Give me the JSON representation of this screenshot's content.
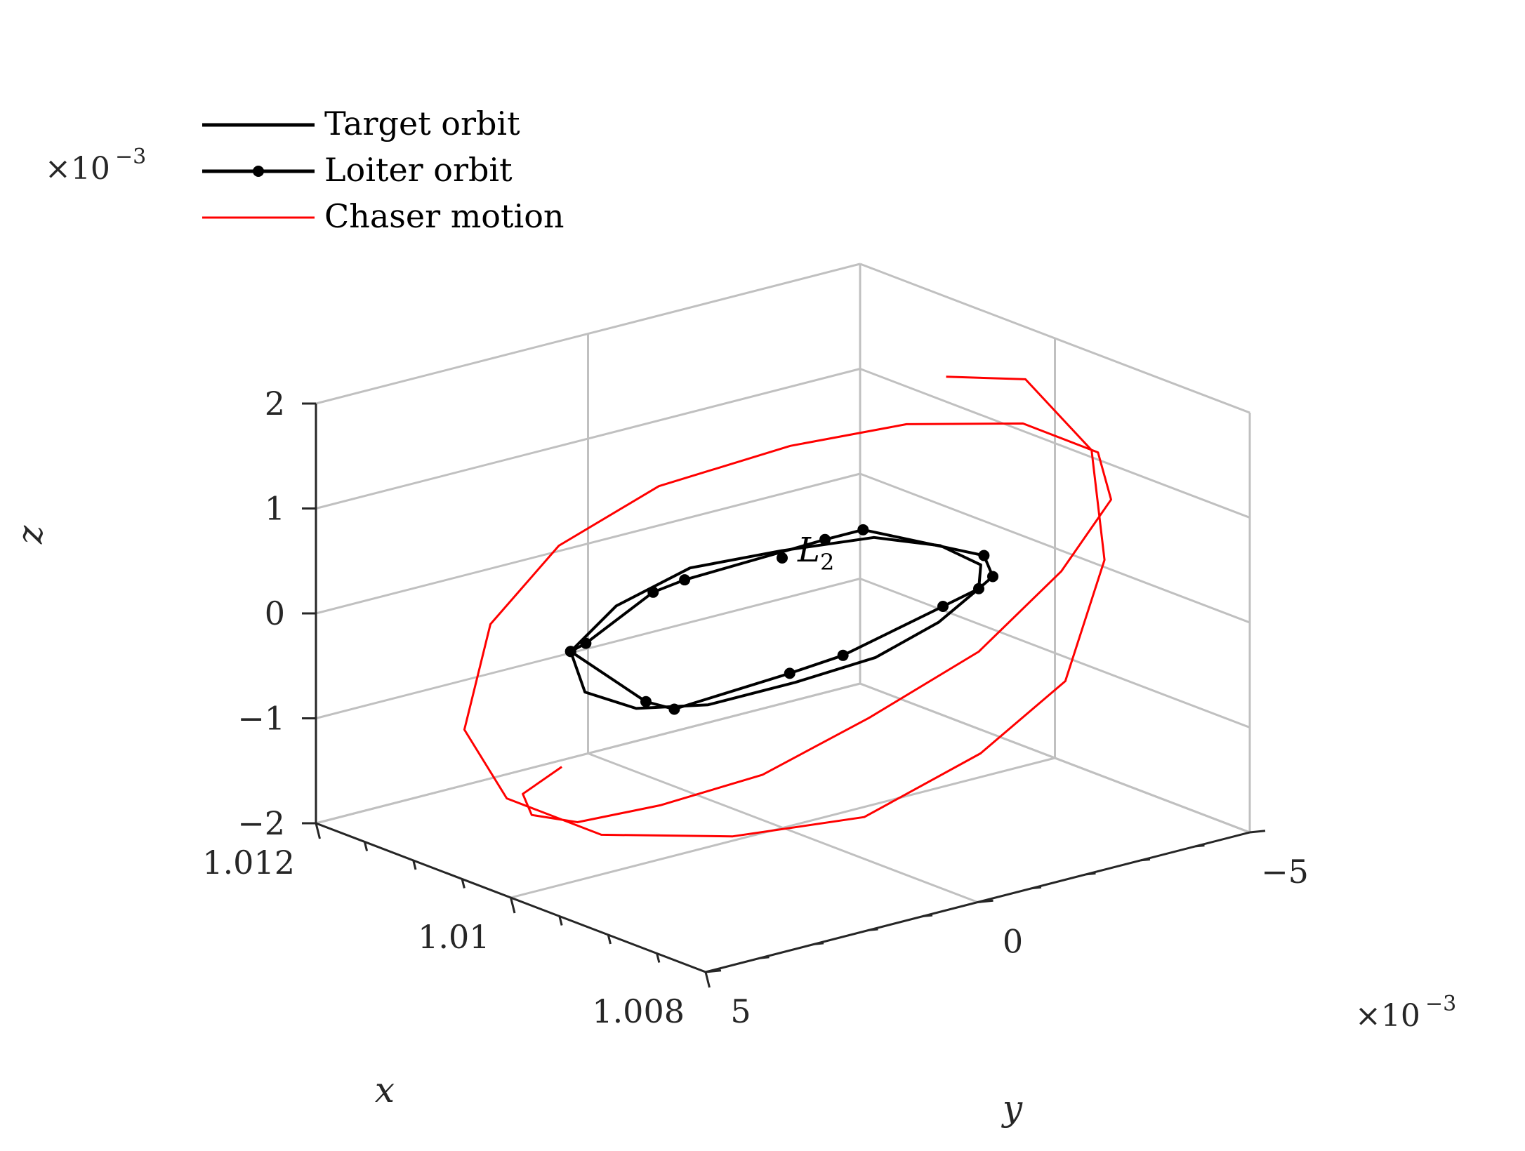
{
  "chart_data": {
    "type": "line",
    "projection": "3d",
    "grid": true,
    "legend_placement": "top-left",
    "xlabel": "x",
    "ylabel": "y",
    "zlabel": "z",
    "xlim": [
      1.008,
      1.012
    ],
    "ylim": [
      -0.005,
      0.005
    ],
    "zlim": [
      -0.002,
      0.002
    ],
    "x_ticks": [
      {
        "value": 1.012,
        "label": "1.012"
      },
      {
        "value": 1.01,
        "label": "1.01"
      },
      {
        "value": 1.008,
        "label": "1.008"
      }
    ],
    "y_ticks": [
      {
        "value": 0.005,
        "label": "5"
      },
      {
        "value": 0,
        "label": "0"
      },
      {
        "value": -0.005,
        "label": "−5"
      }
    ],
    "z_ticks": [
      {
        "value": 0.002,
        "label": "2"
      },
      {
        "value": 0.001,
        "label": "1"
      },
      {
        "value": 0,
        "label": "0"
      },
      {
        "value": -0.001,
        "label": "−1"
      },
      {
        "value": -0.002,
        "label": "−2"
      }
    ],
    "y_multiplier": {
      "base": "×10",
      "exponent": "−3"
    },
    "z_multiplier": {
      "base": "×10",
      "exponent": "−3"
    },
    "legend": [
      {
        "label": "Target orbit",
        "color": "#000000",
        "marker": "none"
      },
      {
        "label": "Loiter orbit",
        "color": "#000000",
        "marker": "dot"
      },
      {
        "label": "Chaser motion",
        "color": "#ff0000",
        "marker": "none"
      }
    ],
    "annotation": {
      "label": "L",
      "subscript": "2",
      "x": 1.0098,
      "y": 0.0006,
      "z": -0.0002
    },
    "series": [
      {
        "name": "Target orbit",
        "color": "#000000",
        "marker": "none",
        "x": [
          1.01,
          1.0097,
          1.0095,
          1.0094,
          1.0094,
          1.0095,
          1.0097,
          1.01,
          1.0103,
          1.0105,
          1.0106,
          1.0106,
          1.0105,
          1.0103,
          1.01
        ],
        "y": [
          0.0039,
          0.0036,
          0.0026,
          0.0011,
          -0.0006,
          -0.002,
          -0.0031,
          -0.0036,
          -0.0034,
          -0.0026,
          -0.0013,
          0.0003,
          0.0018,
          0.0031,
          0.0039
        ],
        "z": [
          0.0002,
          0.0007,
          0.001,
          0.001,
          0.0009,
          0.0006,
          0.0002,
          -0.0002,
          -0.0006,
          -0.0009,
          -0.001,
          -0.001,
          -0.0008,
          -0.0004,
          0.0002
        ]
      },
      {
        "name": "Loiter orbit",
        "color": "#000000",
        "marker": "dot",
        "x": [
          1.01,
          1.0099,
          1.0096,
          1.0095,
          1.0094,
          1.0094,
          1.0095,
          1.0098,
          1.01,
          1.0102,
          1.0105,
          1.0106,
          1.0105,
          1.0104,
          1.01
        ],
        "y": [
          0.0039,
          0.0038,
          0.0031,
          0.0027,
          0.0003,
          -0.0004,
          -0.0028,
          -0.0035,
          -0.0036,
          -0.0033,
          -0.002,
          -0.0012,
          0.0011,
          0.0018,
          0.0039
        ],
        "z": [
          0.0002,
          0.0003,
          0.0008,
          0.0009,
          0.001,
          0.001,
          0.0004,
          0.0,
          -0.0002,
          -0.0004,
          -0.0008,
          -0.0009,
          -0.0009,
          -0.0007,
          0.0002
        ]
      },
      {
        "name": "Chaser motion",
        "color": "#ff0000",
        "marker": "none",
        "x": [
          1.0097,
          1.0101,
          1.0104,
          1.0106,
          1.0107,
          1.0106,
          1.0104,
          1.01,
          1.0096,
          1.0092,
          1.009,
          1.0091,
          1.0094,
          1.0097,
          1.0101,
          1.0104,
          1.0106,
          1.0107,
          1.0106,
          1.0103,
          1.0099,
          1.0095,
          1.0092,
          1.009,
          1.0091,
          1.0094,
          1.0098,
          1.01
        ],
        "y": [
          0.0046,
          0.0046,
          0.0039,
          0.0027,
          0.001,
          -0.0007,
          -0.0023,
          -0.0036,
          -0.0044,
          -0.0046,
          -0.004,
          -0.0028,
          -0.0012,
          0.0004,
          0.0021,
          0.0034,
          0.0043,
          0.0046,
          0.004,
          0.0028,
          0.0011,
          -0.0006,
          -0.0022,
          -0.0034,
          -0.0043,
          -0.0046,
          -0.0041,
          -0.003
        ],
        "z": [
          -0.0007,
          -0.0011,
          -0.0015,
          -0.0018,
          -0.0019,
          -0.0018,
          -0.0014,
          -0.0008,
          0.0,
          0.0008,
          0.0014,
          0.0018,
          0.0019,
          0.0018,
          0.0015,
          0.001,
          0.0003,
          -0.0007,
          -0.0014,
          -0.0018,
          -0.0019,
          -0.0018,
          -0.0013,
          -0.0007,
          0.0003,
          0.0012,
          0.0018,
          0.0019
        ]
      }
    ]
  }
}
